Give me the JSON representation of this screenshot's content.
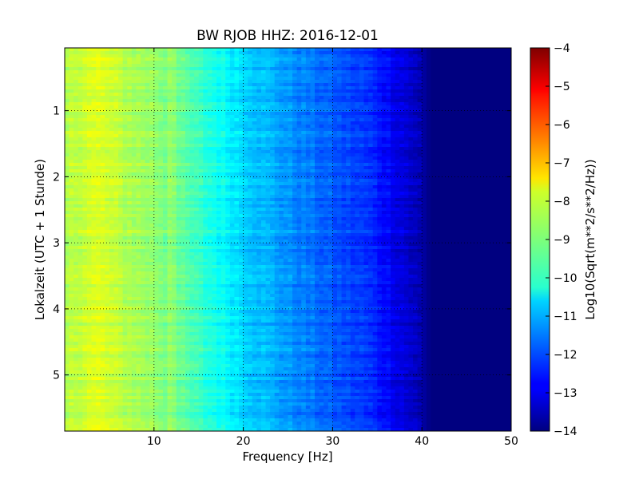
{
  "chart_data": {
    "type": "heatmap",
    "title": "BW RJOB HHZ: 2016-12-01",
    "xlabel": "Frequency [Hz]",
    "ylabel": "Lokalzeit (UTC + 1 Stunde)",
    "colorbar_label": "Log10(Sqrt(m**2/s**2/Hz))",
    "xlim": [
      0,
      50
    ],
    "ylim": [
      5.85,
      0.05
    ],
    "y_inverted": true,
    "x_ticks": [
      "10",
      "20",
      "30",
      "40",
      "50"
    ],
    "y_ticks": [
      "1",
      "2",
      "3",
      "4",
      "5"
    ],
    "colorbar_range": [
      -14,
      -4
    ],
    "colorbar_ticks": [
      "-4",
      "-5",
      "-6",
      "-7",
      "-8",
      "-9",
      "-10",
      "-11",
      "-12",
      "-13",
      "-14"
    ],
    "colormap": "jet",
    "grid": true,
    "spectrum_profile": {
      "frequency": [
        0,
        2,
        4,
        6,
        10,
        13,
        16,
        20,
        25,
        30,
        34,
        36,
        38,
        40,
        41,
        50
      ],
      "log_amplitude": [
        -8.6,
        -8.2,
        -8.1,
        -8.4,
        -8.8,
        -9.3,
        -9.9,
        -10.6,
        -11.3,
        -11.9,
        -12.3,
        -12.7,
        -13.1,
        -13.6,
        -14.0,
        -14.0
      ]
    }
  }
}
